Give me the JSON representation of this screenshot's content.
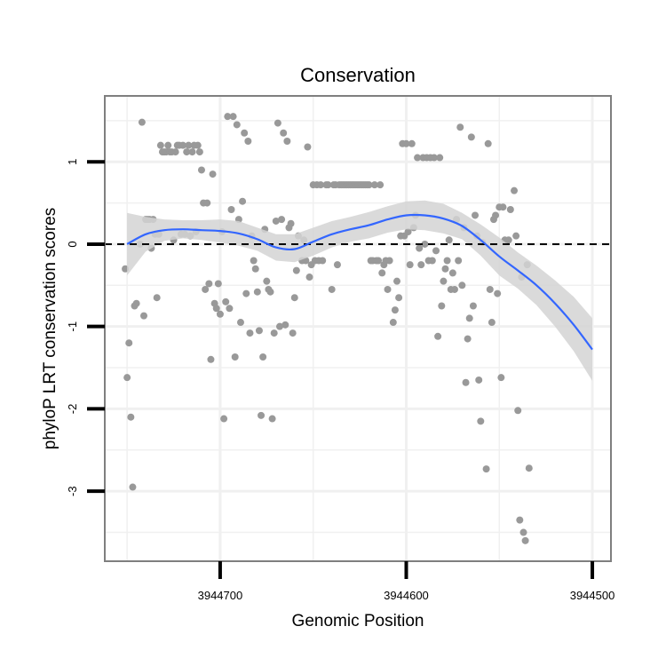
{
  "chart_data": {
    "type": "scatter",
    "title": "Conservation",
    "xlabel": "Genomic Position",
    "ylabel": "phyloP LRT conservation scores",
    "x_reversed": true,
    "xlim": [
      3944762,
      3944490
    ],
    "ylim": [
      -3.85,
      1.8
    ],
    "x_ticks": [
      3944700,
      3944600,
      3944500
    ],
    "x_tick_labels": [
      "3944700",
      "3944600",
      "3944500"
    ],
    "y_ticks": [
      1,
      0,
      -1,
      -2,
      -3
    ],
    "y_tick_labels": [
      "1",
      "0",
      "-1",
      "-2",
      "-3"
    ],
    "grid": true,
    "reference_line": {
      "y": 0,
      "style": "dashed"
    },
    "colors": {
      "points": "#999999",
      "smooth": "#3366ff",
      "band": "#d3d3d3",
      "panel_border": "#7f7f7f",
      "grid": "#f0f0f0"
    },
    "smooth": {
      "x": [
        3944750,
        3944740,
        3944730,
        3944720,
        3944710,
        3944700,
        3944690,
        3944680,
        3944670,
        3944660,
        3944650,
        3944640,
        3944630,
        3944620,
        3944610,
        3944600,
        3944590,
        3944580,
        3944570,
        3944560,
        3944550,
        3944540,
        3944530,
        3944520,
        3944510,
        3944500
      ],
      "y": [
        0.0,
        0.12,
        0.17,
        0.18,
        0.17,
        0.16,
        0.13,
        0.06,
        -0.04,
        -0.06,
        0.03,
        0.12,
        0.18,
        0.23,
        0.3,
        0.35,
        0.35,
        0.31,
        0.22,
        0.05,
        -0.15,
        -0.32,
        -0.5,
        -0.72,
        -0.98,
        -1.28
      ],
      "upper": [
        0.38,
        0.33,
        0.3,
        0.29,
        0.29,
        0.3,
        0.28,
        0.2,
        0.12,
        0.12,
        0.2,
        0.28,
        0.33,
        0.39,
        0.46,
        0.52,
        0.53,
        0.49,
        0.38,
        0.24,
        0.08,
        -0.1,
        -0.26,
        -0.44,
        -0.64,
        -0.9
      ],
      "lower": [
        -0.38,
        -0.09,
        0.04,
        0.07,
        0.05,
        0.02,
        -0.02,
        -0.08,
        -0.2,
        -0.22,
        -0.14,
        -0.04,
        0.03,
        0.07,
        0.14,
        0.18,
        0.17,
        0.13,
        0.06,
        -0.14,
        -0.38,
        -0.54,
        -0.74,
        -1.0,
        -1.3,
        -1.66
      ]
    },
    "points": [
      {
        "x": 3944751,
        "y": -0.3
      },
      {
        "x": 3944750,
        "y": -1.62
      },
      {
        "x": 3944749,
        "y": -1.2
      },
      {
        "x": 3944748,
        "y": -2.1
      },
      {
        "x": 3944747,
        "y": -2.95
      },
      {
        "x": 3944746,
        "y": -0.75
      },
      {
        "x": 3944745,
        "y": -0.72
      },
      {
        "x": 3944743,
        "y": 0.0
      },
      {
        "x": 3944742,
        "y": 1.48
      },
      {
        "x": 3944741,
        "y": -0.87
      },
      {
        "x": 3944740,
        "y": 0.3
      },
      {
        "x": 3944739,
        "y": 0.3
      },
      {
        "x": 3944738,
        "y": 0.3
      },
      {
        "x": 3944737,
        "y": -0.05
      },
      {
        "x": 3944736,
        "y": 0.3
      },
      {
        "x": 3944735,
        "y": 0.12
      },
      {
        "x": 3944734,
        "y": -0.65
      },
      {
        "x": 3944733,
        "y": 0.12
      },
      {
        "x": 3944732,
        "y": 1.2
      },
      {
        "x": 3944731,
        "y": 1.12
      },
      {
        "x": 3944730,
        "y": 1.12
      },
      {
        "x": 3944729,
        "y": 1.12
      },
      {
        "x": 3944728,
        "y": 1.2
      },
      {
        "x": 3944727,
        "y": 1.12
      },
      {
        "x": 3944726,
        "y": 1.12
      },
      {
        "x": 3944725,
        "y": 0.05
      },
      {
        "x": 3944724,
        "y": 1.12
      },
      {
        "x": 3944723,
        "y": 1.2
      },
      {
        "x": 3944722,
        "y": 1.2
      },
      {
        "x": 3944721,
        "y": 0.12
      },
      {
        "x": 3944720,
        "y": 1.2
      },
      {
        "x": 3944719,
        "y": 0.12
      },
      {
        "x": 3944718,
        "y": 1.12
      },
      {
        "x": 3944717,
        "y": 1.2
      },
      {
        "x": 3944716,
        "y": 0.1
      },
      {
        "x": 3944715,
        "y": 1.12
      },
      {
        "x": 3944714,
        "y": 1.2
      },
      {
        "x": 3944713,
        "y": 0.15
      },
      {
        "x": 3944712,
        "y": 1.2
      },
      {
        "x": 3944711,
        "y": 1.12
      },
      {
        "x": 3944710,
        "y": 0.9
      },
      {
        "x": 3944709,
        "y": 0.5
      },
      {
        "x": 3944708,
        "y": -0.55
      },
      {
        "x": 3944707,
        "y": 0.5
      },
      {
        "x": 3944706,
        "y": -0.48
      },
      {
        "x": 3944705,
        "y": -1.4
      },
      {
        "x": 3944704,
        "y": 0.85
      },
      {
        "x": 3944703,
        "y": -0.72
      },
      {
        "x": 3944702,
        "y": -0.78
      },
      {
        "x": 3944701,
        "y": -0.48
      },
      {
        "x": 3944700,
        "y": -0.85
      },
      {
        "x": 3944699,
        "y": 0.15
      },
      {
        "x": 3944698,
        "y": -2.12
      },
      {
        "x": 3944697,
        "y": -0.7
      },
      {
        "x": 3944696,
        "y": 1.55
      },
      {
        "x": 3944695,
        "y": -0.78
      },
      {
        "x": 3944694,
        "y": 0.42
      },
      {
        "x": 3944693,
        "y": 1.55
      },
      {
        "x": 3944692,
        "y": -1.37
      },
      {
        "x": 3944691,
        "y": 1.45
      },
      {
        "x": 3944690,
        "y": 0.3
      },
      {
        "x": 3944689,
        "y": -0.95
      },
      {
        "x": 3944688,
        "y": 0.52
      },
      {
        "x": 3944687,
        "y": 1.35
      },
      {
        "x": 3944686,
        "y": -0.6
      },
      {
        "x": 3944685,
        "y": 1.25
      },
      {
        "x": 3944684,
        "y": -1.08
      },
      {
        "x": 3944683,
        "y": 0.1
      },
      {
        "x": 3944682,
        "y": -0.2
      },
      {
        "x": 3944681,
        "y": -0.3
      },
      {
        "x": 3944680,
        "y": -0.58
      },
      {
        "x": 3944679,
        "y": -1.05
      },
      {
        "x": 3944678,
        "y": -2.08
      },
      {
        "x": 3944677,
        "y": -1.37
      },
      {
        "x": 3944676,
        "y": 0.18
      },
      {
        "x": 3944675,
        "y": -0.45
      },
      {
        "x": 3944674,
        "y": -0.55
      },
      {
        "x": 3944673,
        "y": -0.58
      },
      {
        "x": 3944672,
        "y": -2.12
      },
      {
        "x": 3944671,
        "y": -1.08
      },
      {
        "x": 3944670,
        "y": 0.28
      },
      {
        "x": 3944669,
        "y": 1.47
      },
      {
        "x": 3944668,
        "y": -1.0
      },
      {
        "x": 3944667,
        "y": 0.3
      },
      {
        "x": 3944666,
        "y": 1.35
      },
      {
        "x": 3944665,
        "y": -0.98
      },
      {
        "x": 3944664,
        "y": 1.25
      },
      {
        "x": 3944663,
        "y": 0.2
      },
      {
        "x": 3944662,
        "y": 0.25
      },
      {
        "x": 3944661,
        "y": -1.08
      },
      {
        "x": 3944660,
        "y": -0.65
      },
      {
        "x": 3944659,
        "y": -0.32
      },
      {
        "x": 3944658,
        "y": 0.1
      },
      {
        "x": 3944656,
        "y": -0.2
      },
      {
        "x": 3944655,
        "y": 0.05
      },
      {
        "x": 3944654,
        "y": -0.2
      },
      {
        "x": 3944653,
        "y": 1.18
      },
      {
        "x": 3944652,
        "y": -0.4
      },
      {
        "x": 3944651,
        "y": -0.25
      },
      {
        "x": 3944650,
        "y": 0.72
      },
      {
        "x": 3944649,
        "y": -0.2
      },
      {
        "x": 3944648,
        "y": 0.72
      },
      {
        "x": 3944647,
        "y": -0.2
      },
      {
        "x": 3944646,
        "y": 0.72
      },
      {
        "x": 3944645,
        "y": -0.2
      },
      {
        "x": 3944643,
        "y": 0.72
      },
      {
        "x": 3944642,
        "y": 0.72
      },
      {
        "x": 3944640,
        "y": -0.55
      },
      {
        "x": 3944639,
        "y": 0.72
      },
      {
        "x": 3944638,
        "y": 0.72
      },
      {
        "x": 3944637,
        "y": -0.25
      },
      {
        "x": 3944636,
        "y": 0.72
      },
      {
        "x": 3944635,
        "y": 0.72
      },
      {
        "x": 3944634,
        "y": 0.72
      },
      {
        "x": 3944633,
        "y": 0.72
      },
      {
        "x": 3944632,
        "y": 0.72
      },
      {
        "x": 3944631,
        "y": 0.72
      },
      {
        "x": 3944630,
        "y": 0.72
      },
      {
        "x": 3944629,
        "y": 0.72
      },
      {
        "x": 3944628,
        "y": 0.72
      },
      {
        "x": 3944627,
        "y": 0.72
      },
      {
        "x": 3944626,
        "y": 0.72
      },
      {
        "x": 3944625,
        "y": 0.72
      },
      {
        "x": 3944624,
        "y": 0.72
      },
      {
        "x": 3944623,
        "y": 0.72
      },
      {
        "x": 3944622,
        "y": 0.72
      },
      {
        "x": 3944621,
        "y": 0.72
      },
      {
        "x": 3944620,
        "y": 0.72
      },
      {
        "x": 3944619,
        "y": -0.2
      },
      {
        "x": 3944618,
        "y": -0.2
      },
      {
        "x": 3944617,
        "y": 0.72
      },
      {
        "x": 3944616,
        "y": -0.2
      },
      {
        "x": 3944615,
        "y": -0.2
      },
      {
        "x": 3944614,
        "y": 0.72
      },
      {
        "x": 3944613,
        "y": -0.35
      },
      {
        "x": 3944612,
        "y": -0.25
      },
      {
        "x": 3944611,
        "y": -0.2
      },
      {
        "x": 3944610,
        "y": -0.55
      },
      {
        "x": 3944609,
        "y": -0.2
      },
      {
        "x": 3944607,
        "y": -0.95
      },
      {
        "x": 3944606,
        "y": -0.8
      },
      {
        "x": 3944605,
        "y": -0.45
      },
      {
        "x": 3944604,
        "y": -0.65
      },
      {
        "x": 3944603,
        "y": 0.1
      },
      {
        "x": 3944602,
        "y": 1.22
      },
      {
        "x": 3944601,
        "y": 0.1
      },
      {
        "x": 3944600,
        "y": 1.22
      },
      {
        "x": 3944599,
        "y": 0.15
      },
      {
        "x": 3944598,
        "y": -0.25
      },
      {
        "x": 3944597,
        "y": 1.22
      },
      {
        "x": 3944596,
        "y": 0.2
      },
      {
        "x": 3944595,
        "y": 0.35
      },
      {
        "x": 3944594,
        "y": 1.05
      },
      {
        "x": 3944593,
        "y": -0.05
      },
      {
        "x": 3944592,
        "y": -0.25
      },
      {
        "x": 3944591,
        "y": 1.05
      },
      {
        "x": 3944590,
        "y": 0.0
      },
      {
        "x": 3944589,
        "y": 1.05
      },
      {
        "x": 3944588,
        "y": -0.2
      },
      {
        "x": 3944587,
        "y": 1.05
      },
      {
        "x": 3944586,
        "y": -0.2
      },
      {
        "x": 3944585,
        "y": 1.05
      },
      {
        "x": 3944584,
        "y": -0.08
      },
      {
        "x": 3944583,
        "y": -1.12
      },
      {
        "x": 3944582,
        "y": 1.05
      },
      {
        "x": 3944581,
        "y": -0.75
      },
      {
        "x": 3944580,
        "y": -0.45
      },
      {
        "x": 3944579,
        "y": -0.3
      },
      {
        "x": 3944578,
        "y": -0.2
      },
      {
        "x": 3944577,
        "y": 0.05
      },
      {
        "x": 3944576,
        "y": -0.55
      },
      {
        "x": 3944575,
        "y": -0.35
      },
      {
        "x": 3944574,
        "y": -0.55
      },
      {
        "x": 3944573,
        "y": 0.3
      },
      {
        "x": 3944572,
        "y": -0.2
      },
      {
        "x": 3944571,
        "y": 1.42
      },
      {
        "x": 3944570,
        "y": -0.5
      },
      {
        "x": 3944569,
        "y": 0.2
      },
      {
        "x": 3944568,
        "y": -1.68
      },
      {
        "x": 3944567,
        "y": -1.15
      },
      {
        "x": 3944566,
        "y": -0.9
      },
      {
        "x": 3944565,
        "y": 1.3
      },
      {
        "x": 3944564,
        "y": -0.75
      },
      {
        "x": 3944563,
        "y": 0.35
      },
      {
        "x": 3944562,
        "y": 0.1
      },
      {
        "x": 3944561,
        "y": -1.65
      },
      {
        "x": 3944560,
        "y": -2.15
      },
      {
        "x": 3944559,
        "y": 0.02
      },
      {
        "x": 3944557,
        "y": -2.73
      },
      {
        "x": 3944556,
        "y": 1.22
      },
      {
        "x": 3944555,
        "y": -0.55
      },
      {
        "x": 3944554,
        "y": -0.95
      },
      {
        "x": 3944553,
        "y": 0.3
      },
      {
        "x": 3944552,
        "y": 0.35
      },
      {
        "x": 3944551,
        "y": -0.6
      },
      {
        "x": 3944550,
        "y": 0.45
      },
      {
        "x": 3944549,
        "y": -1.62
      },
      {
        "x": 3944548,
        "y": 0.45
      },
      {
        "x": 3944547,
        "y": 0.05
      },
      {
        "x": 3944545,
        "y": 0.05
      },
      {
        "x": 3944544,
        "y": 0.42
      },
      {
        "x": 3944542,
        "y": 0.65
      },
      {
        "x": 3944541,
        "y": 0.1
      },
      {
        "x": 3944540,
        "y": -2.02
      },
      {
        "x": 3944539,
        "y": -3.35
      },
      {
        "x": 3944538,
        "y": -0.4
      },
      {
        "x": 3944537,
        "y": -3.5
      },
      {
        "x": 3944536,
        "y": -3.6
      },
      {
        "x": 3944535,
        "y": -0.25
      },
      {
        "x": 3944534,
        "y": -2.72
      }
    ]
  }
}
